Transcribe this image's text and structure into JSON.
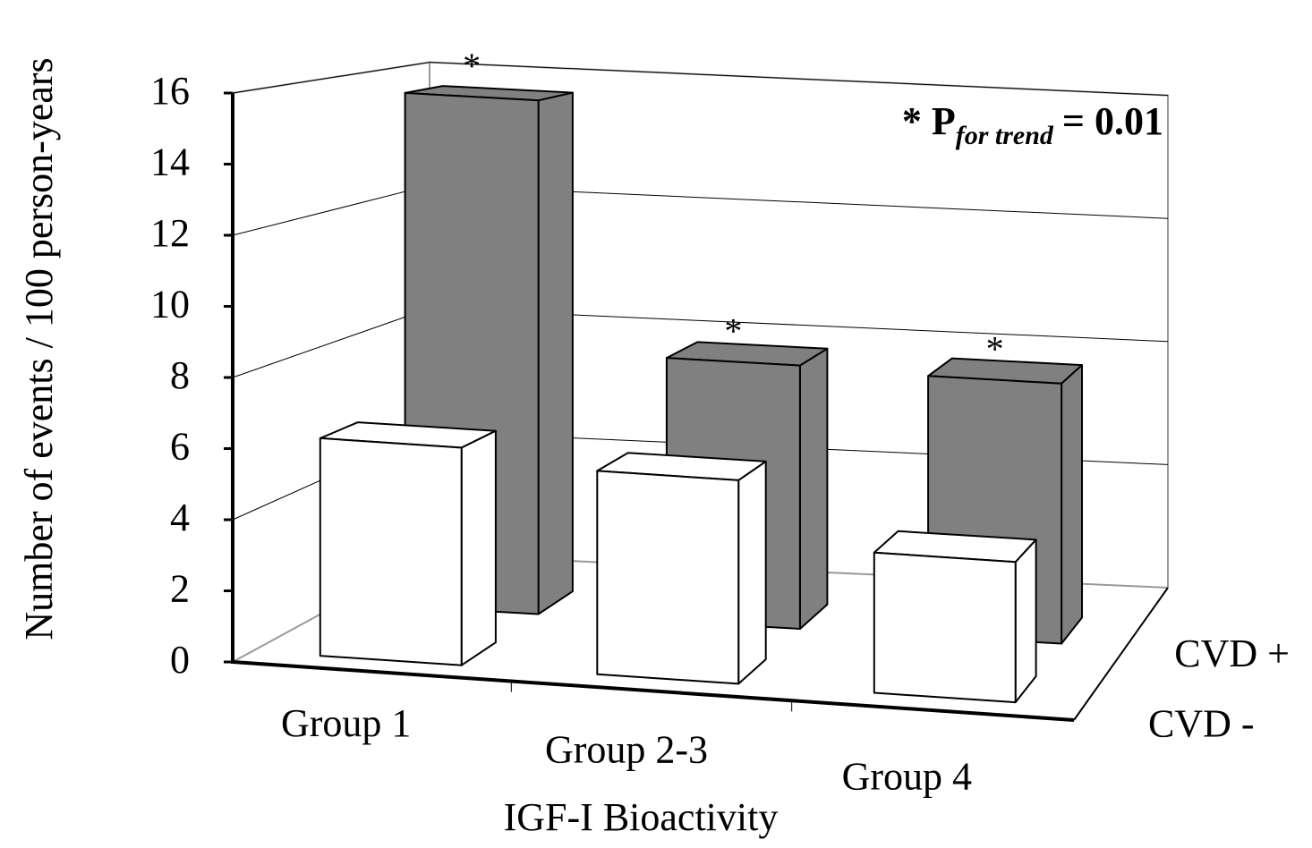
{
  "chart_data": {
    "type": "bar3d",
    "x_label": "IGF-I Bioactivity",
    "y_label": "Number of events / 100 person-years",
    "categories": [
      "Group 1",
      "Group 2-3",
      "Group 4"
    ],
    "series": [
      {
        "name": "CVD -",
        "color": "#ffffff",
        "values": [
          6.2,
          5.8,
          4.0
        ]
      },
      {
        "name": "CVD +",
        "color": "#808080",
        "values": [
          15.6,
          8.0,
          7.9
        ]
      }
    ],
    "significance_markers": [
      "*",
      "*",
      "*"
    ],
    "annotation": {
      "prefix": "* P",
      "subscript": "for trend",
      "suffix": "= 0.01"
    },
    "ylim": [
      0,
      16
    ],
    "yticks": [
      0,
      2,
      4,
      6,
      8,
      10,
      12,
      14,
      16
    ],
    "grid": true
  }
}
